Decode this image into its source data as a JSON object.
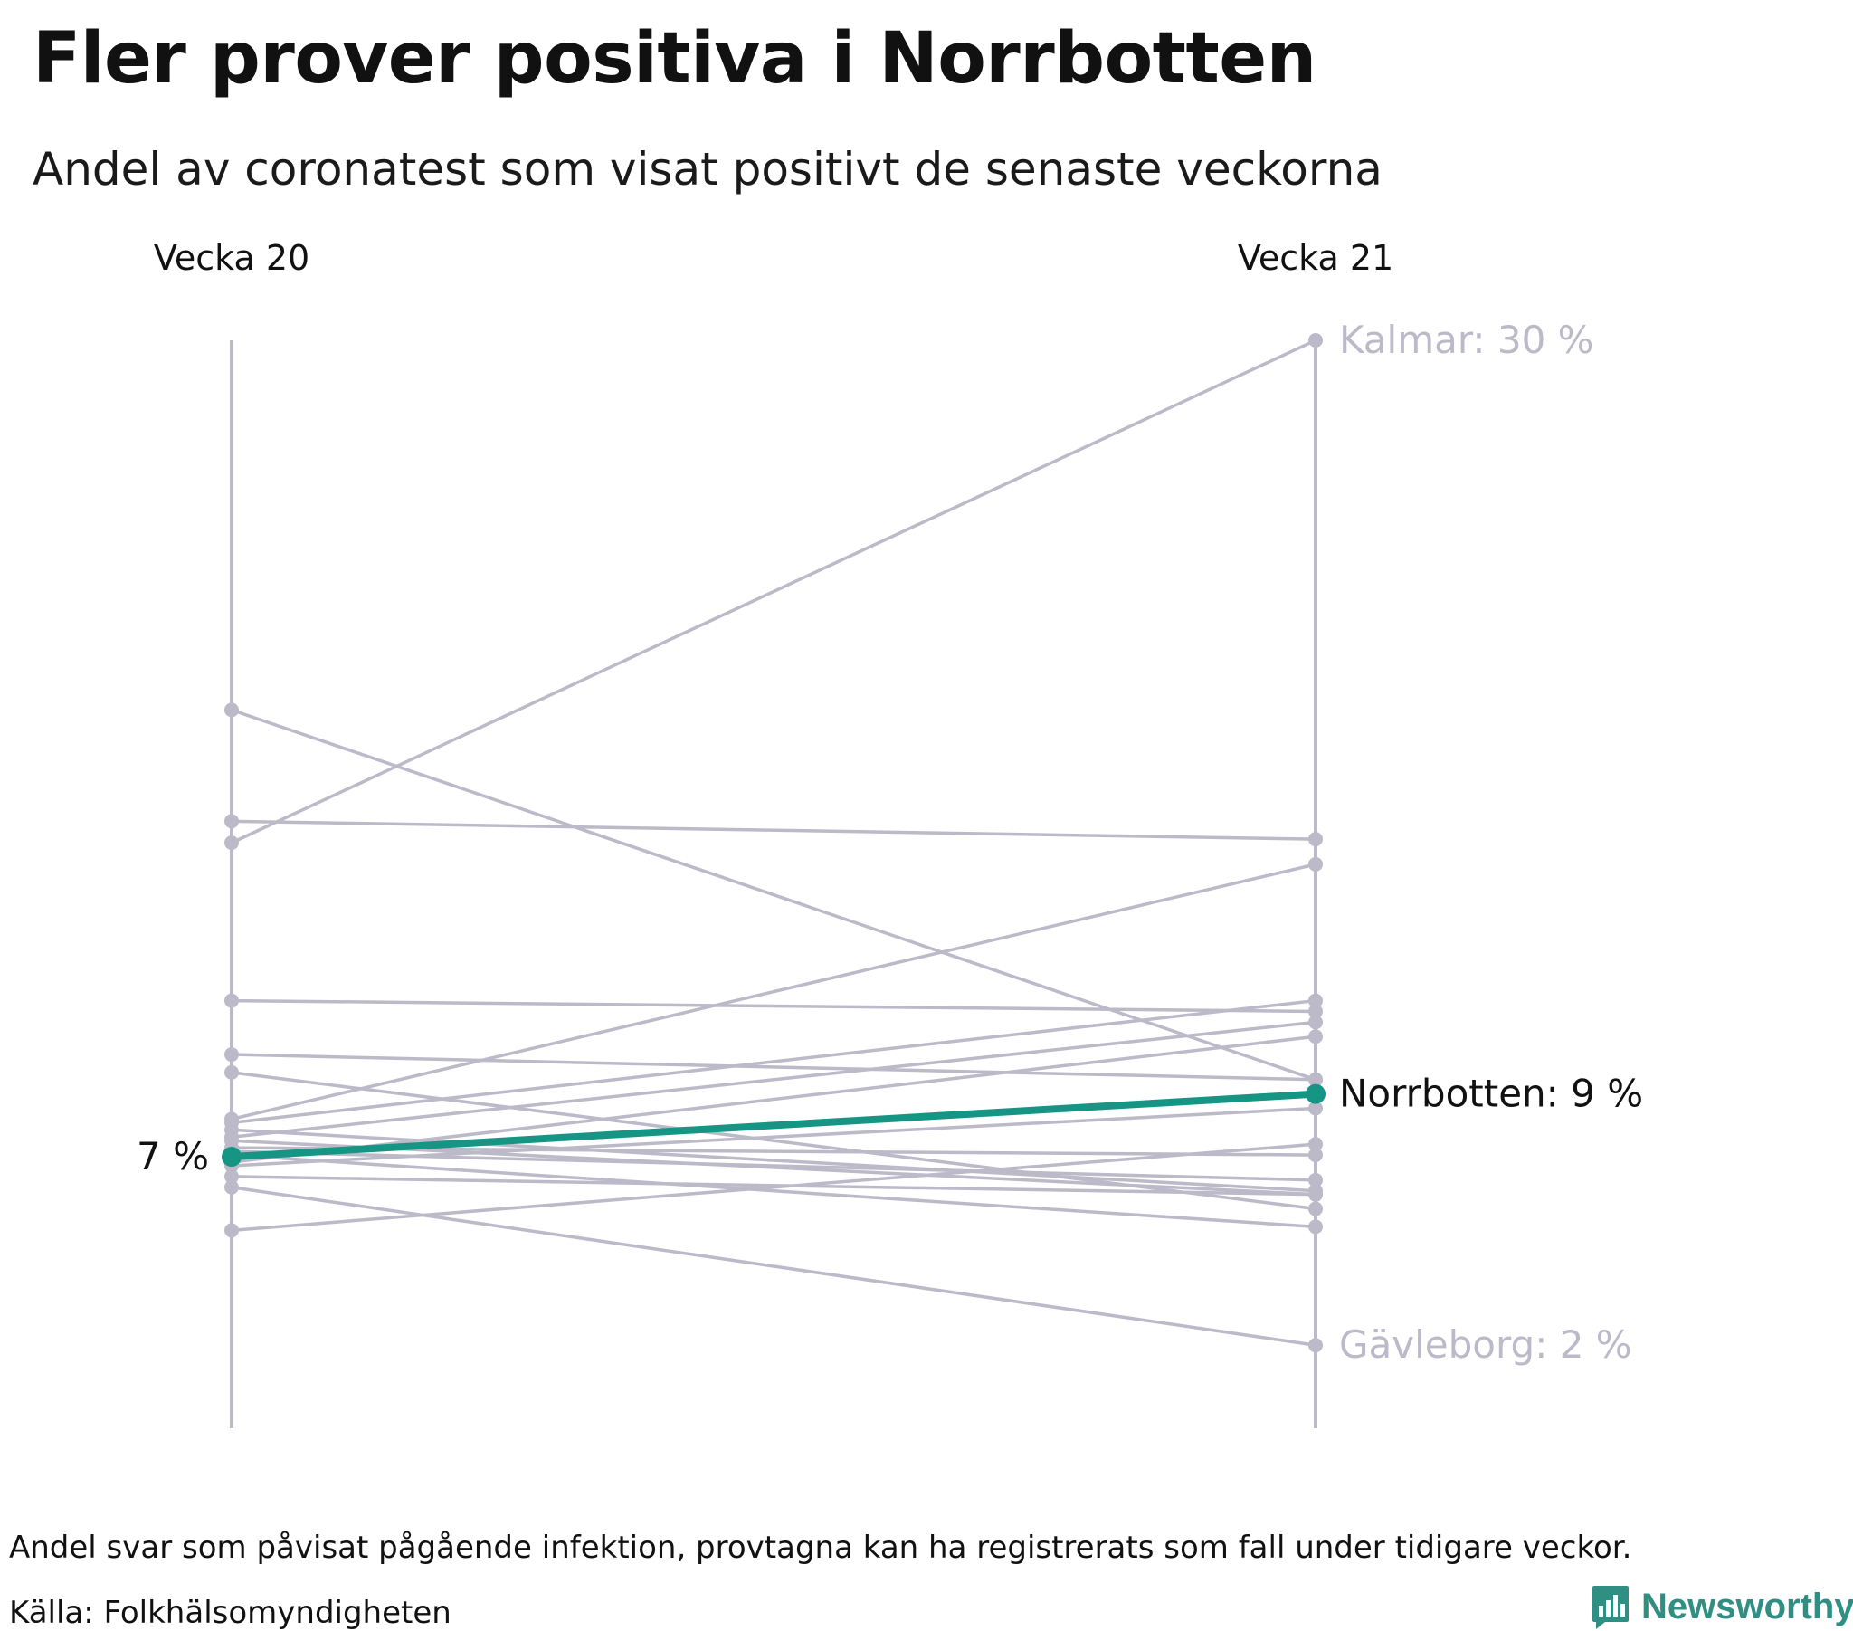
{
  "header": {
    "title": "Fler prover positiva i Norrbotten",
    "subtitle": "Andel av coronatest som visat positivt de senaste veckorna"
  },
  "footer": {
    "note": "Andel svar som påvisat pågående infektion, provtagna kan ha registrerats som fall under tidigare veckor.",
    "source": "Källa: Folkhälsomyndigheten",
    "brand": "Newsworthy",
    "brand_icon": "newsworthy-chart-icon"
  },
  "colors": {
    "background": "#ffffff",
    "grey_line": "#bcbac8",
    "highlight": "#169585",
    "label_grey": "#bcbac8",
    "label_dark": "#111111",
    "brand": "#2f8f83"
  },
  "chart_data": {
    "type": "slope",
    "columns": [
      "Vecka 20",
      "Vecka 21"
    ],
    "ylim": [
      1.4,
      30.0
    ],
    "unit": "%",
    "highlight": {
      "name": "Norrbotten",
      "values": [
        7.25,
        9.0
      ],
      "start_label": "7 %",
      "end_label": "Norrbotten: 9 %"
    },
    "labeled_series": [
      {
        "name": "Kalmar",
        "values": [
          16.0,
          30.0
        ],
        "end_label": "Kalmar: 30 %"
      },
      {
        "name": "Gävleborg",
        "values": [
          6.4,
          2.0
        ],
        "end_label": "Gävleborg: 2 %"
      }
    ],
    "series": [
      {
        "name": "Kalmar",
        "values": [
          16.0,
          30.0
        ]
      },
      {
        "name": "Gävleborg",
        "values": [
          6.4,
          2.0
        ]
      },
      {
        "name": "Norrbotten",
        "values": [
          7.25,
          9.0
        ]
      },
      {
        "name": "",
        "values": [
          19.7,
          9.4
        ]
      },
      {
        "name": "",
        "values": [
          16.6,
          16.1
        ]
      },
      {
        "name": "",
        "values": [
          11.6,
          11.3
        ]
      },
      {
        "name": "",
        "values": [
          10.1,
          9.4
        ]
      },
      {
        "name": "",
        "values": [
          9.6,
          5.8
        ]
      },
      {
        "name": "",
        "values": [
          8.3,
          15.4
        ]
      },
      {
        "name": "",
        "values": [
          8.2,
          11.6
        ]
      },
      {
        "name": "",
        "values": [
          8.0,
          6.3
        ]
      },
      {
        "name": "",
        "values": [
          7.8,
          11.0
        ]
      },
      {
        "name": "",
        "values": [
          7.7,
          6.2
        ]
      },
      {
        "name": "",
        "values": [
          7.5,
          7.3
        ]
      },
      {
        "name": "",
        "values": [
          7.4,
          6.6
        ]
      },
      {
        "name": "",
        "values": [
          7.0,
          8.6
        ]
      },
      {
        "name": "",
        "values": [
          7.3,
          5.3
        ]
      },
      {
        "name": "",
        "values": [
          7.1,
          10.6
        ]
      },
      {
        "name": "",
        "values": [
          6.7,
          6.2
        ]
      },
      {
        "name": "",
        "values": [
          5.2,
          7.6
        ]
      }
    ]
  }
}
